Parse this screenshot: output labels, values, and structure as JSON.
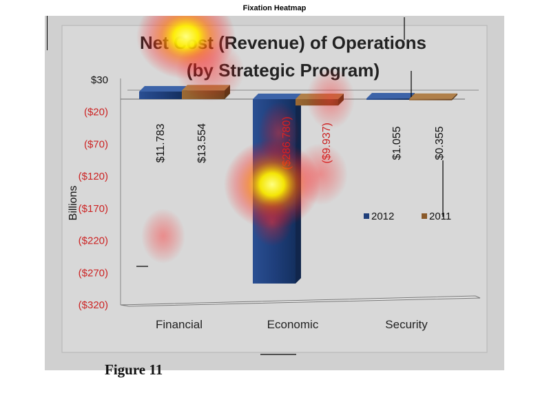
{
  "window": {
    "title": "Fixation Heatmap",
    "figure_caption": "Figure 11"
  },
  "colors": {
    "series_2012": "#203f7a",
    "series_2011": "#8a5a2a",
    "negative_text": "#cc2222",
    "positive_text": "#111111",
    "panel": "#d0d0d0"
  },
  "chart_data": {
    "type": "bar",
    "title": "Net Cost (Revenue) of Operations",
    "subtitle": "(by Strategic Program)",
    "xlabel": "",
    "ylabel": "Billions",
    "categories": [
      "Financial",
      "Economic",
      "Security"
    ],
    "series": [
      {
        "name": "2012",
        "values": [
          11.783,
          -286.78,
          1.055
        ],
        "labels": [
          "$11.783",
          "($286.780)",
          "$1.055"
        ]
      },
      {
        "name": "2011",
        "values": [
          13.554,
          -9.937,
          0.355
        ],
        "labels": [
          "$13.554",
          "($9.937)",
          "$0.355"
        ]
      }
    ],
    "yticks": [
      30,
      -20,
      -70,
      -120,
      -170,
      -220,
      -270,
      -320
    ],
    "ytick_labels": [
      "$30",
      "($20)",
      "($70)",
      "($120)",
      "($170)",
      "($220)",
      "($270)",
      "($320)"
    ],
    "ylim": [
      -320,
      30
    ],
    "grid": false,
    "legend": {
      "position": "right",
      "entries": [
        "2012",
        "2011"
      ]
    }
  },
  "heatmap": {
    "spots": [
      {
        "x_frac": 0.0,
        "level": 1.0
      },
      {
        "x_frac": 0.0,
        "level": 0.9
      }
    ]
  }
}
